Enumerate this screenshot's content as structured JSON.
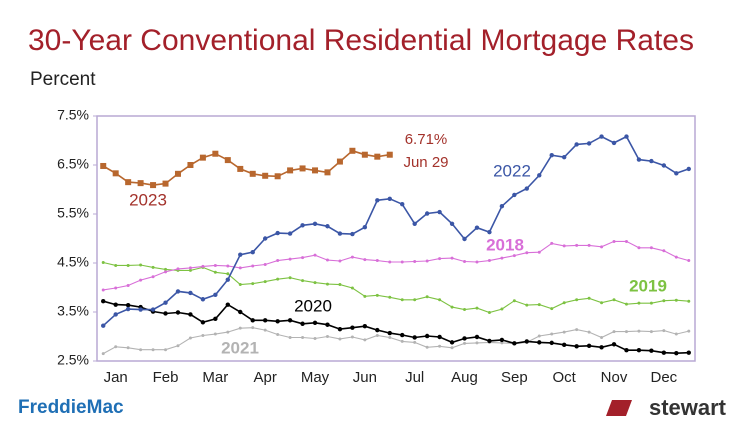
{
  "chart_data": {
    "type": "line",
    "title": "30-Year Conventional Residential Mortgage Rates",
    "subtitle": "Percent",
    "categories": [
      null,
      "Jan",
      null,
      null,
      null,
      "Feb",
      null,
      null,
      null,
      "Mar",
      null,
      null,
      null,
      "Apr",
      null,
      null,
      null,
      "May",
      null,
      null,
      null,
      "Jun",
      null,
      null,
      null,
      "Jul",
      null,
      null,
      null,
      "Aug",
      null,
      null,
      null,
      "Sep",
      null,
      null,
      null,
      "Oct",
      null,
      null,
      null,
      "Nov",
      null,
      null,
      null,
      "Dec",
      null,
      null
    ],
    "ylim": [
      2.5,
      7.5
    ],
    "yticks": [
      {
        "value": 2.5,
        "label": "2.5%"
      },
      {
        "value": 3.5,
        "label": "3.5%"
      },
      {
        "value": 4.5,
        "label": "4.5%"
      },
      {
        "value": 5.5,
        "label": "5.5%"
      },
      {
        "value": 6.5,
        "label": "6.5%"
      },
      {
        "value": 7.5,
        "label": "7.5%"
      }
    ],
    "grid": false,
    "series": [
      {
        "name": "2021",
        "color": "#b3b3b3",
        "values": [
          2.65,
          2.79,
          2.77,
          2.73,
          2.73,
          2.73,
          2.81,
          2.97,
          3.02,
          3.05,
          3.09,
          3.17,
          3.18,
          3.13,
          3.04,
          2.98,
          2.98,
          2.96,
          3.0,
          2.95,
          2.99,
          2.93,
          3.02,
          2.98,
          2.9,
          2.88,
          2.78,
          2.8,
          2.77,
          2.86,
          2.87,
          2.88,
          2.87,
          2.86,
          2.88,
          3.01,
          3.05,
          3.09,
          3.14,
          3.09,
          2.98,
          3.1,
          3.1,
          3.11,
          3.1,
          3.12,
          3.05,
          3.11
        ]
      },
      {
        "name": "2020",
        "color": "#000000",
        "values": [
          3.72,
          3.65,
          3.64,
          3.6,
          3.51,
          3.47,
          3.49,
          3.45,
          3.29,
          3.36,
          3.65,
          3.5,
          3.33,
          3.33,
          3.31,
          3.33,
          3.26,
          3.28,
          3.24,
          3.15,
          3.18,
          3.21,
          3.13,
          3.07,
          3.03,
          2.98,
          3.01,
          2.99,
          2.88,
          2.96,
          2.99,
          2.91,
          2.93,
          2.86,
          2.9,
          2.88,
          2.87,
          2.83,
          2.8,
          2.81,
          2.78,
          2.84,
          2.72,
          2.72,
          2.71,
          2.67,
          2.66,
          2.67
        ]
      },
      {
        "name": "2019",
        "color": "#7dc242",
        "values": [
          4.51,
          4.45,
          4.45,
          4.46,
          4.41,
          4.37,
          4.35,
          4.35,
          4.41,
          4.31,
          4.28,
          4.06,
          4.08,
          4.12,
          4.17,
          4.2,
          4.14,
          4.1,
          4.07,
          4.06,
          3.99,
          3.82,
          3.84,
          3.8,
          3.75,
          3.75,
          3.81,
          3.75,
          3.6,
          3.55,
          3.58,
          3.49,
          3.56,
          3.73,
          3.64,
          3.65,
          3.57,
          3.69,
          3.75,
          3.78,
          3.69,
          3.75,
          3.66,
          3.68,
          3.68,
          3.73,
          3.74,
          3.72
        ]
      },
      {
        "name": "2018",
        "color": "#d86fd8",
        "values": [
          3.95,
          3.99,
          4.04,
          4.15,
          4.22,
          4.32,
          4.38,
          4.4,
          4.43,
          4.45,
          4.44,
          4.4,
          4.44,
          4.47,
          4.55,
          4.58,
          4.61,
          4.66,
          4.56,
          4.54,
          4.62,
          4.57,
          4.55,
          4.52,
          4.52,
          4.53,
          4.54,
          4.59,
          4.6,
          4.53,
          4.52,
          4.55,
          4.6,
          4.65,
          4.71,
          4.72,
          4.9,
          4.85,
          4.86,
          4.86,
          4.83,
          4.94,
          4.94,
          4.81,
          4.81,
          4.75,
          4.62,
          4.55
        ]
      },
      {
        "name": "2022",
        "color": "#3b56a6",
        "values": [
          3.22,
          3.45,
          3.56,
          3.55,
          3.55,
          3.69,
          3.92,
          3.89,
          3.76,
          3.85,
          4.16,
          4.67,
          4.72,
          5.0,
          5.11,
          5.1,
          5.27,
          5.3,
          5.25,
          5.1,
          5.09,
          5.23,
          5.78,
          5.81,
          5.7,
          5.3,
          5.51,
          5.54,
          5.3,
          4.99,
          5.22,
          5.13,
          5.66,
          5.89,
          6.02,
          6.29,
          6.7,
          6.66,
          6.92,
          6.94,
          7.08,
          6.95,
          7.08,
          6.61,
          6.58,
          6.49,
          6.33,
          6.42
        ]
      },
      {
        "name": "2023",
        "color": "#b8672e",
        "values": [
          6.48,
          6.33,
          6.15,
          6.13,
          6.09,
          6.12,
          6.32,
          6.5,
          6.65,
          6.73,
          6.6,
          6.42,
          6.32,
          6.28,
          6.27,
          6.39,
          6.43,
          6.39,
          6.35,
          6.57,
          6.79,
          6.71,
          6.67,
          6.71,
          null,
          null,
          null,
          null,
          null,
          null,
          null,
          null,
          null,
          null,
          null,
          null,
          null,
          null,
          null,
          null,
          null,
          null,
          null,
          null,
          null,
          null,
          null,
          null
        ]
      }
    ],
    "annotations": [
      "6.71%",
      "Jun 29"
    ]
  },
  "footer": {
    "left_logo": "FreddieMac",
    "right_logo": "stewart"
  }
}
